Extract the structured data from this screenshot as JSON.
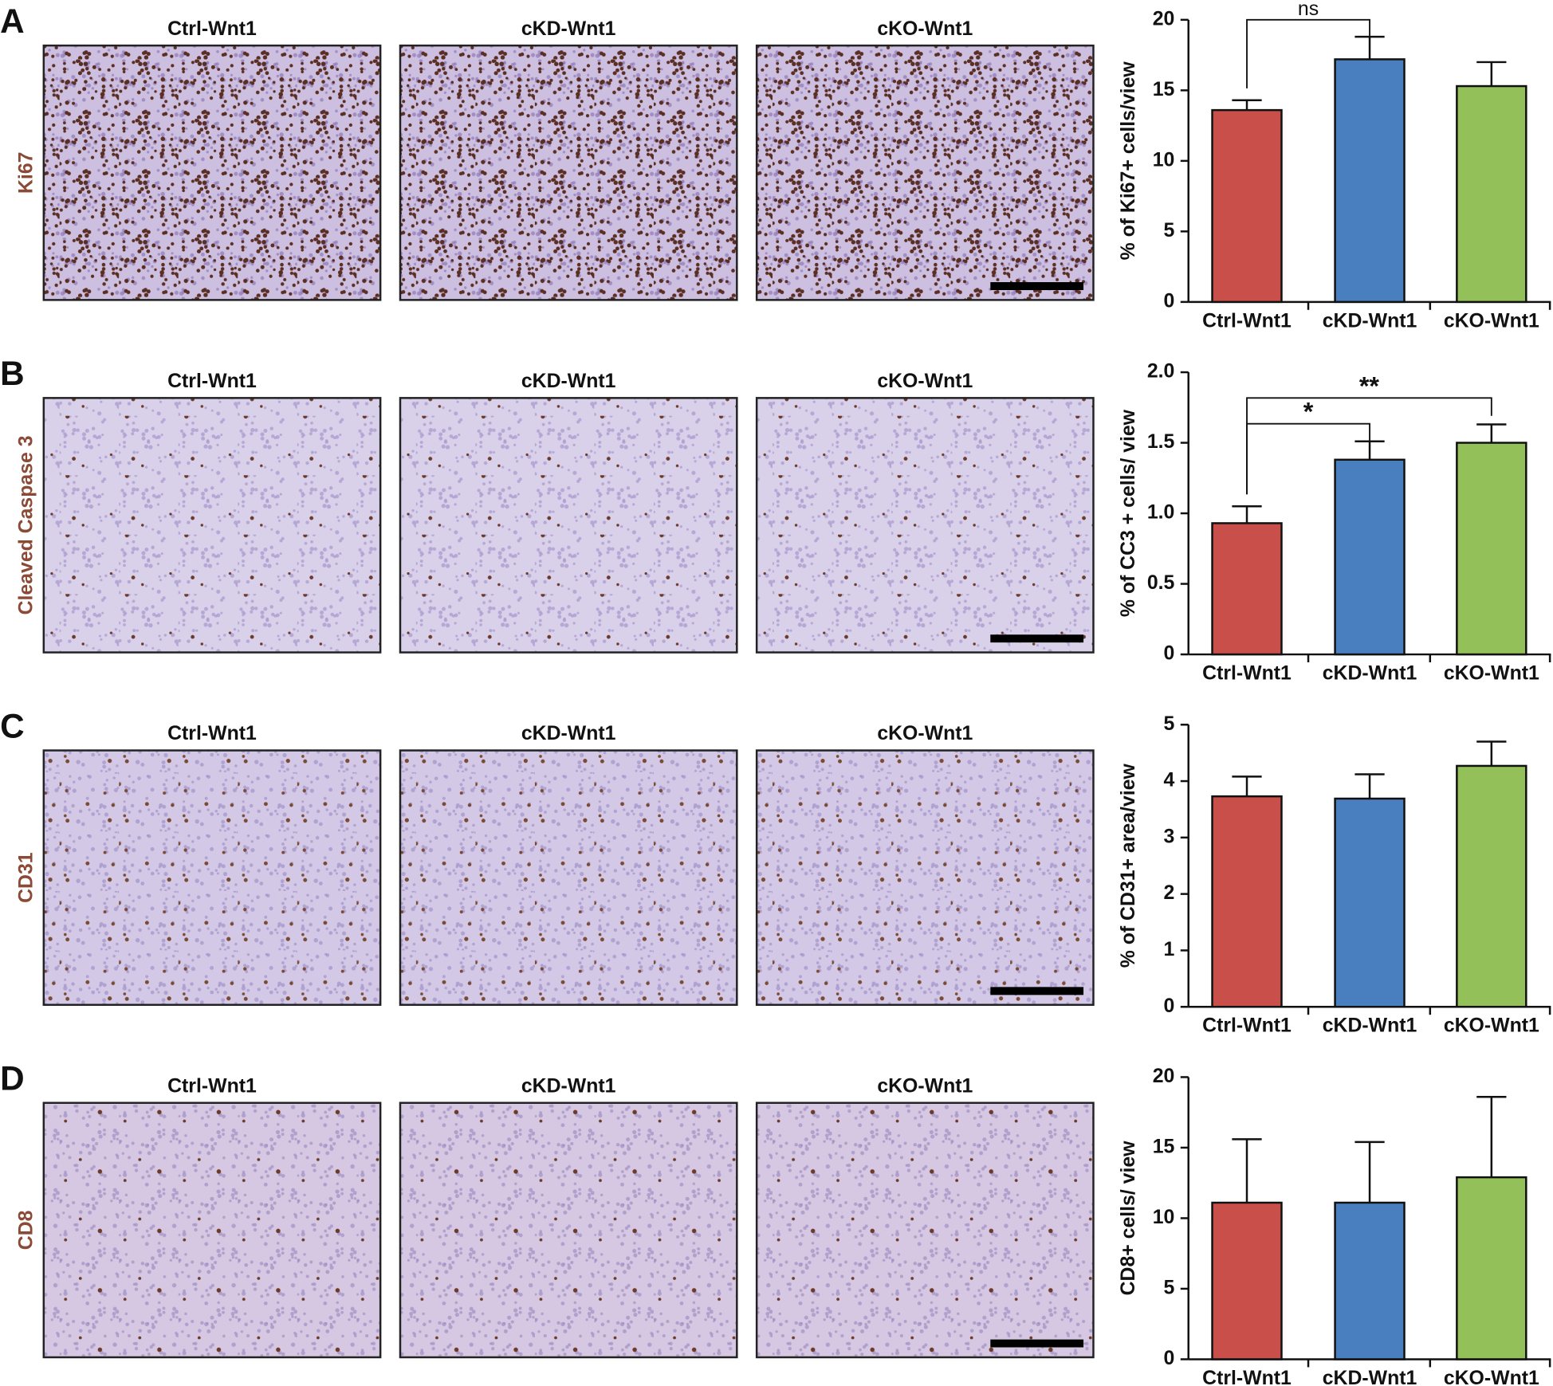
{
  "panels": [
    {
      "letter": "A",
      "stain": "Ki67",
      "columns": [
        "Ctrl-Wnt1",
        "cKD-Wnt1",
        "cKO-Wnt1"
      ]
    },
    {
      "letter": "B",
      "stain": "Cleaved Caspase 3",
      "columns": [
        "Ctrl-Wnt1",
        "cKD-Wnt1",
        "cKO-Wnt1"
      ]
    },
    {
      "letter": "C",
      "stain": "CD31",
      "columns": [
        "Ctrl-Wnt1",
        "cKD-Wnt1",
        "cKO-Wnt1"
      ]
    },
    {
      "letter": "D",
      "stain": "CD8",
      "columns": [
        "Ctrl-Wnt1",
        "cKD-Wnt1",
        "cKO-Wnt1"
      ]
    }
  ],
  "chart_data": [
    {
      "type": "bar",
      "ylabel": "% of Ki67+ cells/view",
      "categories": [
        "Ctrl-Wnt1",
        "cKD-Wnt1",
        "cKO-Wnt1"
      ],
      "values": [
        13.6,
        17.2,
        15.3
      ],
      "errors": [
        0.7,
        1.6,
        1.7
      ],
      "colors": [
        "#c9504a",
        "#4a7fbf",
        "#94c05a"
      ],
      "ylim": [
        0,
        20
      ],
      "yticks": [
        0,
        5,
        10,
        15,
        20
      ],
      "significance": [
        {
          "from": 0,
          "to": 1,
          "label": "ns"
        }
      ]
    },
    {
      "type": "bar",
      "ylabel": "% of CC3 + cells/ view",
      "categories": [
        "Ctrl-Wnt1",
        "cKD-Wnt1",
        "cKO-Wnt1"
      ],
      "values": [
        0.93,
        1.38,
        1.5
      ],
      "errors": [
        0.12,
        0.13,
        0.13
      ],
      "colors": [
        "#c9504a",
        "#4a7fbf",
        "#94c05a"
      ],
      "ylim": [
        0,
        2
      ],
      "yticks": [
        0,
        0.5,
        {
          "value": 1,
          "label": "1.0"
        },
        1.5,
        {
          "value": 2,
          "label": "2.0"
        }
      ],
      "significance": [
        {
          "from": 0,
          "to": 2,
          "label": "**"
        },
        {
          "from": 0,
          "to": 1,
          "label": "*"
        }
      ]
    },
    {
      "type": "bar",
      "ylabel": "% of CD31+ area/view",
      "categories": [
        "Ctrl-Wnt1",
        "cKD-Wnt1",
        "cKO-Wnt1"
      ],
      "values": [
        3.73,
        3.69,
        4.27
      ],
      "errors": [
        0.35,
        0.43,
        0.43
      ],
      "colors": [
        "#c9504a",
        "#4a7fbf",
        "#94c05a"
      ],
      "ylim": [
        0,
        5
      ],
      "yticks": [
        0,
        1,
        2,
        3,
        4,
        5
      ],
      "significance": []
    },
    {
      "type": "bar",
      "ylabel": "CD8+ cells/ view",
      "categories": [
        "Ctrl-Wnt1",
        "cKD-Wnt1",
        "cKO-Wnt1"
      ],
      "values": [
        11.1,
        11.1,
        12.9
      ],
      "errors": [
        4.5,
        4.3,
        5.7
      ],
      "colors": [
        "#c9504a",
        "#4a7fbf",
        "#94c05a"
      ],
      "ylim": [
        0,
        20
      ],
      "yticks": [
        0,
        5,
        10,
        15,
        20
      ],
      "significance": []
    }
  ]
}
